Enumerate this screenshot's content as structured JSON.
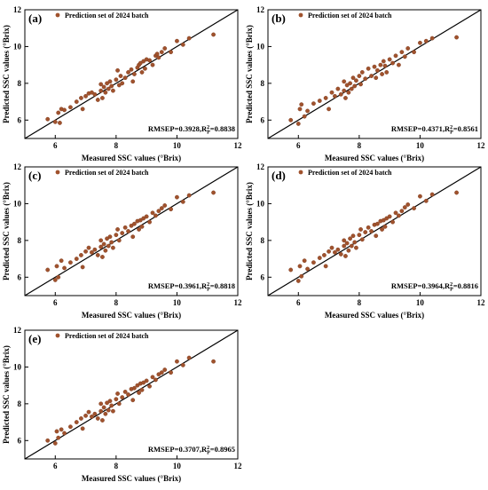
{
  "chart_data": [
    {
      "type": "scatter",
      "panel_label": "(a)",
      "legend": "Prediction set of 2024 batch",
      "xlabel": "Measured SSC values (°Brix)",
      "ylabel": "Predicted SSC values (°Brix)",
      "xlim": [
        5,
        12
      ],
      "ylim": [
        5,
        12
      ],
      "xticks": [
        "6",
        "8",
        "10",
        "12"
      ],
      "yticks": [
        "6",
        "8",
        "10",
        "12"
      ],
      "metric": {
        "prefix": "RMSEP=0.3928,R",
        "sup": "2",
        "sub": "P",
        "suffix": "=0.8838"
      },
      "reference_line": [
        [
          5,
          5
        ],
        [
          12,
          12
        ]
      ],
      "marker_color": "#a0522d",
      "x": [
        5.75,
        6.0,
        6.1,
        6.15,
        6.2,
        6.3,
        6.5,
        6.7,
        6.85,
        6.9,
        7.0,
        7.1,
        7.2,
        7.3,
        7.4,
        7.5,
        7.5,
        7.55,
        7.6,
        7.65,
        7.7,
        7.75,
        7.8,
        7.85,
        7.9,
        8.0,
        8.05,
        8.1,
        8.15,
        8.2,
        8.3,
        8.4,
        8.5,
        8.55,
        8.6,
        8.7,
        8.75,
        8.8,
        8.85,
        8.9,
        8.95,
        9.0,
        9.1,
        9.2,
        9.3,
        9.35,
        9.4,
        9.5,
        9.6,
        9.8,
        10.0,
        10.2,
        10.4,
        11.2
      ],
      "y": [
        6.05,
        5.9,
        6.4,
        5.85,
        6.6,
        6.55,
        6.7,
        7.0,
        7.2,
        6.6,
        7.3,
        7.45,
        7.5,
        7.4,
        7.1,
        7.6,
        7.95,
        7.2,
        7.8,
        7.5,
        8.0,
        7.7,
        8.1,
        7.85,
        7.6,
        8.2,
        8.7,
        7.9,
        8.4,
        8.0,
        8.3,
        8.6,
        8.75,
        8.1,
        8.5,
        8.85,
        9.0,
        9.1,
        8.6,
        9.2,
        8.8,
        9.3,
        9.25,
        9.0,
        9.5,
        9.6,
        9.4,
        9.7,
        9.9,
        9.7,
        10.3,
        10.1,
        10.45,
        10.65
      ]
    },
    {
      "type": "scatter",
      "panel_label": "(b)",
      "legend": "Prediction set of 2024 batch",
      "xlabel": "Measured SSC values (°Brix)",
      "ylabel": "Predicted SSC values (°Brix)",
      "xlim": [
        5,
        12
      ],
      "ylim": [
        5,
        12
      ],
      "xticks": [
        "6",
        "8",
        "10",
        "12"
      ],
      "yticks": [
        "6",
        "8",
        "10",
        "12"
      ],
      "metric": {
        "prefix": "RMSEP=0.4371,R",
        "sup": "2",
        "sub": "P",
        "suffix": "=0.8561"
      },
      "reference_line": [
        [
          5,
          5
        ],
        [
          12,
          12
        ]
      ],
      "marker_color": "#a0522d",
      "x": [
        5.75,
        6.0,
        6.05,
        6.1,
        6.2,
        6.3,
        6.5,
        6.7,
        6.9,
        7.0,
        7.1,
        7.2,
        7.3,
        7.4,
        7.5,
        7.5,
        7.55,
        7.6,
        7.65,
        7.7,
        7.75,
        7.8,
        7.85,
        7.9,
        8.0,
        8.05,
        8.1,
        8.2,
        8.3,
        8.4,
        8.5,
        8.55,
        8.6,
        8.7,
        8.75,
        8.8,
        8.85,
        8.9,
        9.0,
        9.1,
        9.2,
        9.3,
        9.4,
        9.5,
        9.6,
        9.8,
        10.0,
        10.2,
        10.4,
        11.2
      ],
      "y": [
        6.0,
        5.8,
        6.6,
        6.85,
        6.2,
        6.5,
        6.9,
        7.05,
        7.2,
        6.6,
        7.5,
        7.3,
        7.7,
        7.4,
        7.6,
        8.1,
        7.2,
        7.9,
        7.5,
        8.0,
        7.7,
        8.3,
        7.85,
        8.15,
        8.4,
        7.95,
        8.6,
        8.25,
        8.8,
        8.4,
        8.9,
        8.3,
        8.7,
        9.0,
        8.5,
        9.2,
        8.95,
        8.6,
        9.3,
        9.1,
        9.5,
        9.0,
        9.7,
        9.45,
        9.9,
        9.7,
        10.2,
        10.3,
        10.45,
        10.5
      ]
    },
    {
      "type": "scatter",
      "panel_label": "(c)",
      "legend": "Prediction set of 2024 batch",
      "xlabel": "Measured SSC values (°Brix)",
      "ylabel": "Predicted SSC values (°Brix)",
      "xlim": [
        5,
        12
      ],
      "ylim": [
        5,
        12
      ],
      "xticks": [
        "6",
        "8",
        "10",
        "12"
      ],
      "yticks": [
        "6",
        "8",
        "10",
        "12"
      ],
      "metric": {
        "prefix": "RMSEP=0.3961,R",
        "sup": "2",
        "sub": "P",
        "suffix": "=0.8818"
      },
      "reference_line": [
        [
          5,
          5
        ],
        [
          12,
          12
        ]
      ],
      "marker_color": "#a0522d",
      "x": [
        5.75,
        6.0,
        6.05,
        6.1,
        6.2,
        6.3,
        6.5,
        6.7,
        6.85,
        6.9,
        7.0,
        7.1,
        7.2,
        7.3,
        7.4,
        7.5,
        7.5,
        7.55,
        7.6,
        7.65,
        7.7,
        7.75,
        7.8,
        7.85,
        7.9,
        8.0,
        8.05,
        8.1,
        8.2,
        8.3,
        8.4,
        8.5,
        8.55,
        8.6,
        8.7,
        8.75,
        8.8,
        8.85,
        8.9,
        9.0,
        9.1,
        9.2,
        9.3,
        9.4,
        9.5,
        9.6,
        9.8,
        10.0,
        10.2,
        10.4,
        11.2
      ],
      "y": [
        6.4,
        5.85,
        6.6,
        6.0,
        6.9,
        6.5,
        6.8,
        7.0,
        7.2,
        6.55,
        7.4,
        7.6,
        7.35,
        7.5,
        7.2,
        7.65,
        8.0,
        7.1,
        7.8,
        7.45,
        8.1,
        7.7,
        8.2,
        7.9,
        7.6,
        8.3,
        8.6,
        8.0,
        8.4,
        8.7,
        8.5,
        8.8,
        8.2,
        8.9,
        9.05,
        8.6,
        9.1,
        8.75,
        9.2,
        9.3,
        9.0,
        9.5,
        9.35,
        9.6,
        9.75,
        9.9,
        9.7,
        10.35,
        10.1,
        10.45,
        10.6
      ]
    },
    {
      "type": "scatter",
      "panel_label": "(d)",
      "legend": "Prediction set of 2024 batch",
      "xlabel": "Measured SSC values (°Brix)",
      "ylabel": "Predicted SSC values (°Brix)",
      "xlim": [
        5,
        12
      ],
      "ylim": [
        5,
        12
      ],
      "xticks": [
        "6",
        "8",
        "10",
        "12"
      ],
      "yticks": [
        "6",
        "8",
        "10",
        "12"
      ],
      "metric": {
        "prefix": "RMSEP=0.3964,R",
        "sup": "2",
        "sub": "P",
        "suffix": "=0.8816"
      },
      "reference_line": [
        [
          5,
          5
        ],
        [
          12,
          12
        ]
      ],
      "marker_color": "#a0522d",
      "x": [
        5.75,
        6.0,
        6.05,
        6.1,
        6.2,
        6.3,
        6.5,
        6.7,
        6.85,
        6.9,
        7.0,
        7.1,
        7.2,
        7.3,
        7.4,
        7.5,
        7.5,
        7.55,
        7.6,
        7.65,
        7.7,
        7.75,
        7.8,
        7.85,
        7.9,
        8.0,
        8.05,
        8.1,
        8.2,
        8.3,
        8.4,
        8.5,
        8.55,
        8.6,
        8.7,
        8.75,
        8.8,
        8.85,
        8.9,
        9.0,
        9.1,
        9.2,
        9.3,
        9.4,
        9.5,
        9.6,
        9.8,
        10.0,
        10.2,
        10.4,
        11.2
      ],
      "y": [
        6.4,
        5.8,
        6.6,
        6.05,
        6.9,
        6.45,
        6.8,
        7.05,
        7.2,
        6.6,
        7.4,
        7.6,
        7.35,
        7.5,
        7.25,
        7.7,
        8.0,
        7.15,
        7.85,
        7.45,
        8.1,
        7.7,
        8.25,
        7.9,
        7.6,
        8.3,
        8.6,
        8.05,
        8.45,
        8.7,
        8.5,
        8.85,
        8.25,
        8.9,
        9.05,
        8.6,
        9.1,
        8.75,
        9.2,
        9.3,
        9.0,
        9.5,
        9.35,
        9.6,
        9.8,
        9.95,
        9.75,
        10.4,
        10.15,
        10.5,
        10.6
      ]
    },
    {
      "type": "scatter",
      "panel_label": "(e)",
      "legend": "Prediction set of 2024 batch",
      "xlabel": "Measured SSC values (°Brix)",
      "ylabel": "Predicted SSC values (°Brix)",
      "xlim": [
        5,
        12
      ],
      "ylim": [
        5,
        12
      ],
      "xticks": [
        "6",
        "8",
        "10",
        "12"
      ],
      "yticks": [
        "6",
        "8",
        "10",
        "12"
      ],
      "metric": {
        "prefix": "RMSEP=0.3707,R",
        "sup": "2",
        "sub": "P",
        "suffix": "=0.8965"
      },
      "reference_line": [
        [
          5,
          5
        ],
        [
          12,
          12
        ]
      ],
      "marker_color": "#a0522d",
      "x": [
        5.75,
        6.0,
        6.05,
        6.1,
        6.2,
        6.3,
        6.5,
        6.7,
        6.85,
        6.9,
        7.0,
        7.1,
        7.2,
        7.3,
        7.4,
        7.5,
        7.5,
        7.55,
        7.6,
        7.65,
        7.7,
        7.75,
        7.8,
        7.85,
        7.9,
        8.0,
        8.05,
        8.1,
        8.2,
        8.3,
        8.4,
        8.5,
        8.55,
        8.6,
        8.7,
        8.75,
        8.8,
        8.85,
        8.9,
        9.0,
        9.1,
        9.2,
        9.3,
        9.4,
        9.5,
        9.6,
        9.8,
        10.0,
        10.2,
        10.4,
        11.2
      ],
      "y": [
        6.0,
        5.85,
        6.5,
        6.15,
        6.6,
        6.4,
        6.75,
        7.0,
        7.2,
        6.65,
        7.35,
        7.55,
        7.3,
        7.45,
        7.2,
        7.6,
        8.0,
        7.1,
        7.8,
        7.45,
        8.05,
        7.65,
        8.15,
        7.9,
        7.6,
        8.25,
        8.55,
        8.0,
        8.35,
        8.65,
        8.5,
        8.8,
        8.2,
        8.85,
        9.0,
        8.6,
        9.1,
        8.75,
        9.15,
        9.25,
        8.95,
        9.45,
        9.3,
        9.6,
        9.7,
        9.85,
        9.7,
        10.3,
        10.1,
        10.5,
        10.3
      ]
    }
  ]
}
